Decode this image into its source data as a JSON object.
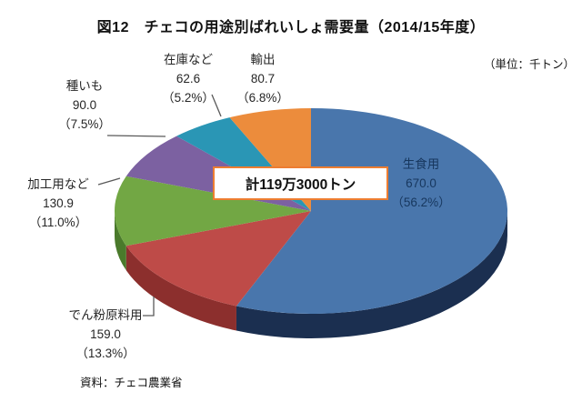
{
  "title": "図12　チェコの用途別ばれいしょ需要量（2014/15年度）",
  "unit_note": "（単位：千トン）",
  "source": "資料：チェコ農業省",
  "center_total": "計119万3000トン",
  "chart_data": {
    "type": "pie",
    "title": "図12　チェコの用途別ばれいしょ需要量（2014/15年度）",
    "unit": "千トン",
    "style": "3d-pie",
    "start": "top",
    "direction": "clockwise",
    "total_label": "計119万3000トン",
    "total_value_thousand_tons": 1193,
    "slices": [
      {
        "name": "生食用",
        "value": 670.0,
        "value_text": "670.0",
        "pct": 56.2,
        "pct_text": "（56.2%）",
        "color": "#4976AC",
        "side_color": "#1B2F50"
      },
      {
        "name": "でん粉原料用",
        "value": 159.0,
        "value_text": "159.0",
        "pct": 13.3,
        "pct_text": "（13.3%）",
        "color": "#BE4B48",
        "side_color": "#8C2F2D"
      },
      {
        "name": "加工用など",
        "value": 130.9,
        "value_text": "130.9",
        "pct": 11.0,
        "pct_text": "（11.0%）",
        "color": "#72A744",
        "side_color": "#4A7A2B"
      },
      {
        "name": "種いも",
        "value": 90.0,
        "value_text": "90.0",
        "pct": 7.5,
        "pct_text": "（7.5%）",
        "color": "#7C61A1",
        "side_color": "#55417A"
      },
      {
        "name": "在庫など",
        "value": 62.6,
        "value_text": "62.6",
        "pct": 5.2,
        "pct_text": "（5.2%）",
        "color": "#2A96B5",
        "side_color": "#1B6B85"
      },
      {
        "name": "輸出",
        "value": 80.7,
        "value_text": "80.7",
        "pct": 6.8,
        "pct_text": "（6.8%）",
        "color": "#EC8C3C",
        "side_color": "#B55F1F"
      }
    ]
  }
}
